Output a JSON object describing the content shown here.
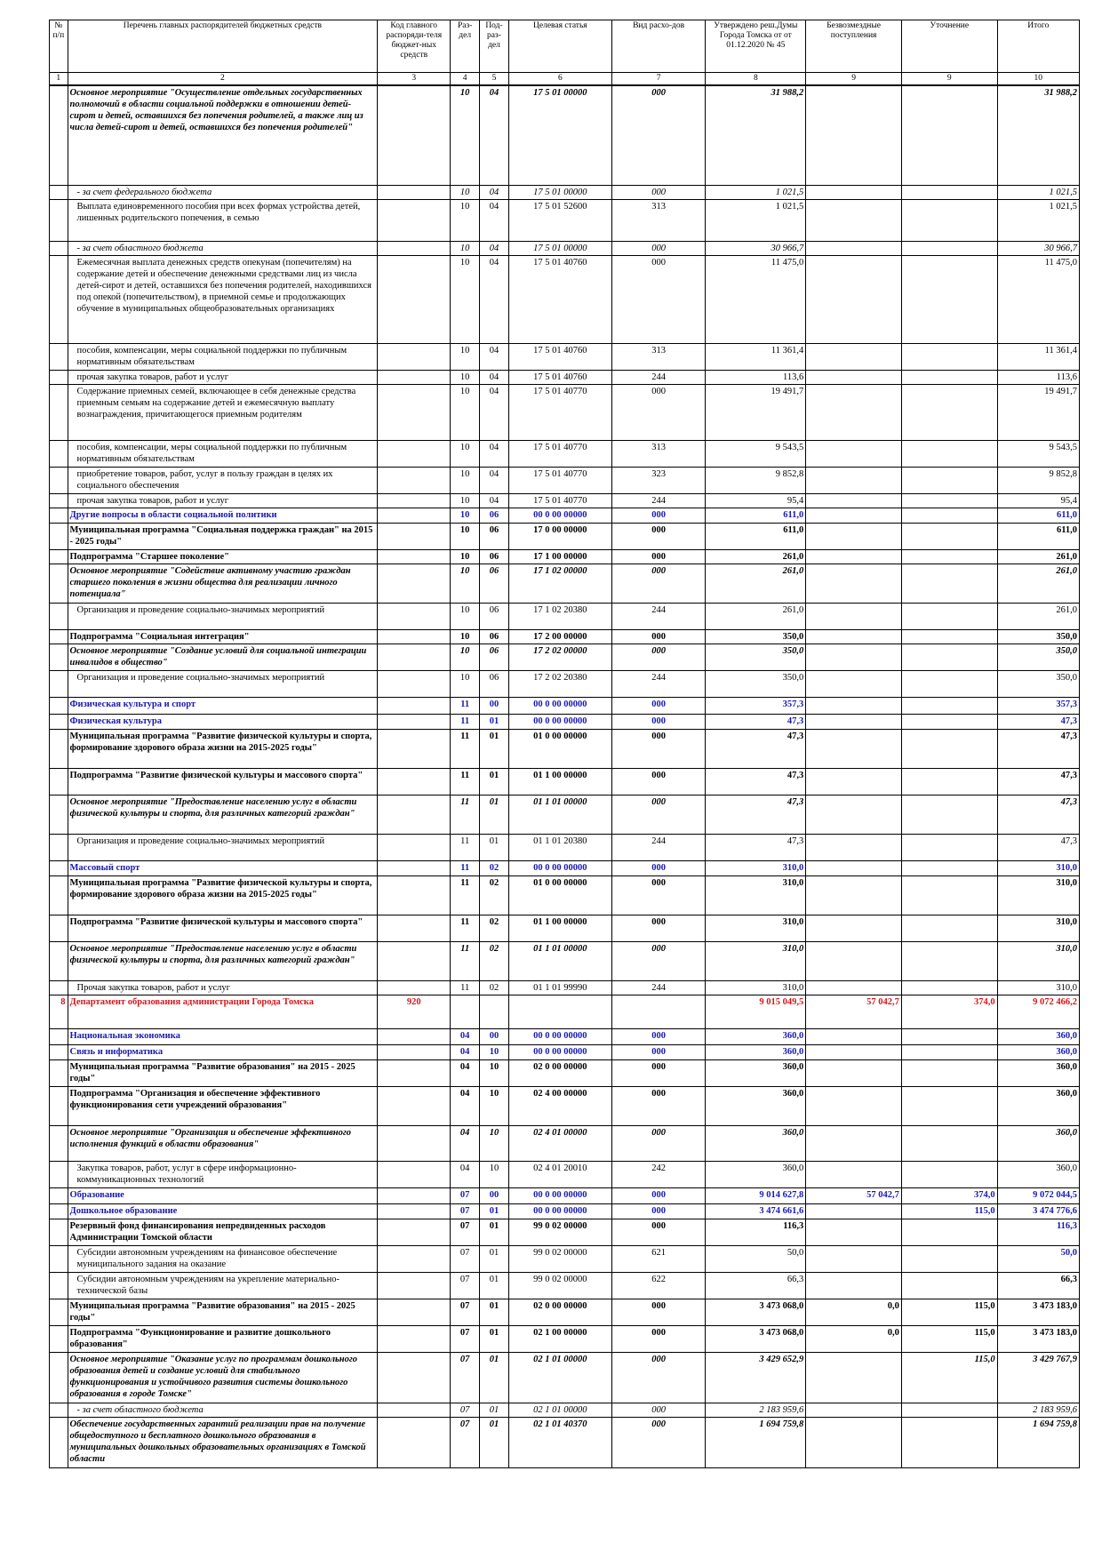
{
  "header": {
    "cols": [
      "№ п/п",
      "Перечень главных распорядителей бюджетных средств",
      "Код главного распоряди-теля бюджет-ных средств",
      "Раз-дел",
      "Под-раз-дел",
      "Целевая статья",
      "Вид расхо-дов",
      "Утверждено реш.Думы Города Томска от от 01.12.2020 № 45",
      "Безвозмездные поступления",
      "Уточнение",
      "Итого"
    ],
    "nums": [
      "1",
      "2",
      "3",
      "4",
      "5",
      "6",
      "7",
      "8",
      "9",
      "9",
      "10"
    ]
  },
  "rows": [
    {
      "style": "bi",
      "h": 112,
      "no": "",
      "name": "Основное мероприятие \"Осуществление отдельных государственных полномочий в области социальной поддержки в отношении детей-сирот и детей, оставшихся без попечения родителей, а также лиц из числа детей-сирот и детей, оставшихся без попечения родителей\"",
      "code": "",
      "razdel": "10",
      "podr": "04",
      "cs": "17 5 01 00000",
      "vr": "000",
      "approved": "31 988,2",
      "free": "",
      "clar": "",
      "total": "31 988,2"
    },
    {
      "style": "it",
      "h": 16,
      "ind": true,
      "no": "",
      "name": "- за счет федерального бюджета",
      "code": "",
      "razdel": "10",
      "podr": "04",
      "cs": "17 5 01 00000",
      "vr": "000",
      "approved": "1 021,5",
      "free": "",
      "clar": "",
      "total": "1 021,5"
    },
    {
      "style": "plain",
      "h": 47,
      "ind": true,
      "no": "",
      "name": "Выплата единовременного пособия при всех формах устройства детей, лишенных родительского попечения, в семью",
      "code": "",
      "razdel": "10",
      "podr": "04",
      "cs": "17 5 01 52600",
      "vr": "313",
      "approved": "1 021,5",
      "free": "",
      "clar": "",
      "total": "1 021,5"
    },
    {
      "style": "it",
      "h": 16,
      "ind": true,
      "no": "",
      "name": "- за счет областного бюджета",
      "code": "",
      "razdel": "10",
      "podr": "04",
      "cs": "17 5 01 00000",
      "vr": "000",
      "approved": "30 966,7",
      "free": "",
      "clar": "",
      "total": "30 966,7"
    },
    {
      "style": "plain",
      "h": 99,
      "ind": true,
      "no": "",
      "name": "Ежемесячная выплата денежных средств опекунам (попечителям) на содержание детей и обеспечение денежными средствами лиц из числа детей-сирот и детей, оставшихся без попечения родителей, находившихся под опекой (попечительством), в приемной семье и продолжающих обучение в муниципальных общеобразовательных организациях",
      "code": "",
      "razdel": "10",
      "podr": "04",
      "cs": "17 5 01 40760",
      "vr": "000",
      "approved": "11 475,0",
      "free": "",
      "clar": "",
      "total": "11 475,0"
    },
    {
      "style": "plain",
      "h": 30,
      "ind": true,
      "no": "",
      "name": "пособия, компенсации, меры социальной поддержки по публичным нормативным обязательствам",
      "code": "",
      "razdel": "10",
      "podr": "04",
      "cs": "17 5 01 40760",
      "vr": "313",
      "approved": "11 361,4",
      "free": "",
      "clar": "",
      "total": "11 361,4"
    },
    {
      "style": "plain",
      "h": 16,
      "ind": true,
      "no": "",
      "name": "прочая закупка товаров, работ и услуг",
      "code": "",
      "razdel": "10",
      "podr": "04",
      "cs": "17 5 01 40760",
      "vr": "244",
      "approved": "113,6",
      "free": "",
      "clar": "",
      "total": "113,6"
    },
    {
      "style": "plain",
      "h": 63,
      "ind": true,
      "no": "",
      "name": "Содержание приемных семей, включающее в себя денежные средства приемным семьям на содержание детей и ежемесячную выплату вознаграждения, причитающегося приемным родителям",
      "code": "",
      "razdel": "10",
      "podr": "04",
      "cs": "17 5 01 40770",
      "vr": "000",
      "approved": "19 491,7",
      "free": "",
      "clar": "",
      "total": "19 491,7"
    },
    {
      "style": "plain",
      "h": 30,
      "ind": true,
      "no": "",
      "name": "пособия, компенсации, меры социальной поддержки по публичным нормативным обязательствам",
      "code": "",
      "razdel": "10",
      "podr": "04",
      "cs": "17 5 01 40770",
      "vr": "313",
      "approved": "9 543,5",
      "free": "",
      "clar": "",
      "total": "9 543,5"
    },
    {
      "style": "plain",
      "h": 30,
      "ind": true,
      "no": "",
      "name": "приобретение товаров, работ, услуг в пользу граждан в целях их социального обеспечения",
      "code": "",
      "razdel": "10",
      "podr": "04",
      "cs": "17 5 01 40770",
      "vr": "323",
      "approved": "9 852,8",
      "free": "",
      "clar": "",
      "total": "9 852,8"
    },
    {
      "style": "plain",
      "h": 16,
      "ind": true,
      "no": "",
      "name": "прочая закупка товаров, работ и услуг",
      "code": "",
      "razdel": "10",
      "podr": "04",
      "cs": "17 5 01 40770",
      "vr": "244",
      "approved": "95,4",
      "free": "",
      "clar": "",
      "total": "95,4"
    },
    {
      "style": "blue",
      "h": 17,
      "no": "",
      "name": "Другие вопросы в области социальной политики",
      "code": "",
      "razdel": "10",
      "podr": "06",
      "cs": "00 0 00 00000",
      "vr": "000",
      "approved": "611,0",
      "free": "",
      "clar": "",
      "total": "611,0"
    },
    {
      "style": "bold",
      "h": 30,
      "no": "",
      "name": "Муниципальная программа \"Социальная поддержка граждан\" на 2015 - 2025 годы\"",
      "code": "",
      "razdel": "10",
      "podr": "06",
      "cs": "17 0 00 00000",
      "vr": "000",
      "approved": "611,0",
      "free": "",
      "clar": "",
      "total": "611,0"
    },
    {
      "style": "bold",
      "h": 16,
      "no": "",
      "name": "Подпрограмма \"Старшее поколение\"",
      "code": "",
      "razdel": "10",
      "podr": "06",
      "cs": "17 1 00 00000",
      "vr": "000",
      "approved": "261,0",
      "free": "",
      "clar": "",
      "total": "261,0"
    },
    {
      "style": "bi",
      "h": 44,
      "no": "",
      "name": "Основное мероприятие \"Содействие активному участию граждан старшего поколения в жизни общества для реализации личного потенциала\"",
      "code": "",
      "razdel": "10",
      "podr": "06",
      "cs": "17 1 02 00000",
      "vr": "000",
      "approved": "261,0",
      "free": "",
      "clar": "",
      "total": "261,0"
    },
    {
      "style": "plain",
      "h": 30,
      "ind": true,
      "no": "",
      "name": "Организация и проведение социально-значимых мероприятий",
      "code": "",
      "razdel": "10",
      "podr": "06",
      "cs": "17 1 02 20380",
      "vr": "244",
      "approved": "261,0",
      "free": "",
      "clar": "",
      "total": "261,0"
    },
    {
      "style": "bold",
      "h": 16,
      "no": "",
      "name": "Подпрограмма \"Социальная интеграция\"",
      "code": "",
      "razdel": "10",
      "podr": "06",
      "cs": "17 2 00 00000",
      "vr": "000",
      "approved": "350,0",
      "free": "",
      "clar": "",
      "total": "350,0"
    },
    {
      "style": "bi",
      "h": 30,
      "no": "",
      "name": "Основное мероприятие \"Создание условий для социальной интеграции инвалидов в общество\"",
      "code": "",
      "razdel": "10",
      "podr": "06",
      "cs": "17 2 02 00000",
      "vr": "000",
      "approved": "350,0",
      "free": "",
      "clar": "",
      "total": "350,0"
    },
    {
      "style": "plain",
      "h": 30,
      "ind": true,
      "no": "",
      "name": "Организация и проведение социально-значимых мероприятий",
      "code": "",
      "razdel": "10",
      "podr": "06",
      "cs": "17 2 02 20380",
      "vr": "244",
      "approved": "350,0",
      "free": "",
      "clar": "",
      "total": "350,0"
    },
    {
      "style": "blue big",
      "h": 19,
      "no": "",
      "name": "Физическая культура и спорт",
      "code": "",
      "razdel": "11",
      "podr": "00",
      "cs": "00 0 00 00000",
      "vr": "000",
      "approved": "357,3",
      "free": "",
      "clar": "",
      "total": "357,3"
    },
    {
      "style": "blue",
      "h": 17,
      "no": "",
      "name": "Физическая культура",
      "code": "",
      "razdel": "11",
      "podr": "01",
      "cs": "00 0 00 00000",
      "vr": "000",
      "approved": "47,3",
      "free": "",
      "clar": "",
      "total": "47,3"
    },
    {
      "style": "bold",
      "h": 44,
      "no": "",
      "name": "Муниципальная программа \"Развитие физической культуры и спорта, формирование здорового образа жизни на 2015-2025 годы\"",
      "code": "",
      "razdel": "11",
      "podr": "01",
      "cs": "01 0 00 00000",
      "vr": "000",
      "approved": "47,3",
      "free": "",
      "clar": "",
      "total": "47,3"
    },
    {
      "style": "bold",
      "h": 30,
      "no": "",
      "name": "Подпрограмма \"Развитие физической культуры и массового спорта\"",
      "code": "",
      "razdel": "11",
      "podr": "01",
      "cs": "01 1 00 00000",
      "vr": "000",
      "approved": "47,3",
      "free": "",
      "clar": "",
      "total": "47,3"
    },
    {
      "style": "bi",
      "h": 44,
      "no": "",
      "name": "Основное мероприятие \"Предоставление населению услуг в области физической культуры и спорта, для различных категорий граждан\"",
      "code": "",
      "razdel": "11",
      "podr": "01",
      "cs": "01 1 01 00000",
      "vr": "000",
      "approved": "47,3",
      "free": "",
      "clar": "",
      "total": "47,3"
    },
    {
      "style": "plain",
      "h": 30,
      "ind": true,
      "no": "",
      "name": "Организация и проведение социально-значимых мероприятий",
      "code": "",
      "razdel": "11",
      "podr": "01",
      "cs": "01 1 01 20380",
      "vr": "244",
      "approved": "47,3",
      "free": "",
      "clar": "",
      "total": "47,3"
    },
    {
      "style": "blue",
      "h": 17,
      "no": "",
      "name": "Массовый спорт",
      "code": "",
      "razdel": "11",
      "podr": "02",
      "cs": "00 0 00 00000",
      "vr": "000",
      "approved": "310,0",
      "free": "",
      "clar": "",
      "total": "310,0"
    },
    {
      "style": "bold",
      "h": 44,
      "no": "",
      "name": "Муниципальная программа \"Развитие физической культуры и спорта, формирование здорового образа жизни на 2015-2025 годы\"",
      "code": "",
      "razdel": "11",
      "podr": "02",
      "cs": "01 0 00 00000",
      "vr": "000",
      "approved": "310,0",
      "free": "",
      "clar": "",
      "total": "310,0"
    },
    {
      "style": "bold",
      "h": 30,
      "no": "",
      "name": "Подпрограмма \"Развитие физической культуры и массового спорта\"",
      "code": "",
      "razdel": "11",
      "podr": "02",
      "cs": "01 1 00 00000",
      "vr": "000",
      "approved": "310,0",
      "free": "",
      "clar": "",
      "total": "310,0"
    },
    {
      "style": "bi",
      "h": 44,
      "no": "",
      "name": "Основное мероприятие \"Предоставление населению услуг в области физической культуры и спорта, для различных категорий граждан\"",
      "code": "",
      "razdel": "11",
      "podr": "02",
      "cs": "01 1 01 00000",
      "vr": "000",
      "approved": "310,0",
      "free": "",
      "clar": "",
      "total": "310,0"
    },
    {
      "style": "plain",
      "h": 16,
      "ind": true,
      "no": "",
      "name": "Прочая закупка товаров, работ и услуг",
      "code": "",
      "razdel": "11",
      "podr": "02",
      "cs": "01 1 01 99990",
      "vr": "244",
      "approved": "310,0",
      "free": "",
      "clar": "",
      "total": "310,0"
    },
    {
      "style": "dept",
      "h": 38,
      "no": "8",
      "name": "Департамент образования администрации Города Томска",
      "code": "920",
      "razdel": "",
      "podr": "",
      "cs": "",
      "vr": "",
      "approved": "9 015 049,5",
      "free": "57 042,7",
      "clar": "374,0",
      "total": "9 072 466,2"
    },
    {
      "style": "blue big",
      "h": 18,
      "no": "",
      "name": "Национальная экономика",
      "code": "",
      "razdel": "04",
      "podr": "00",
      "cs": "00 0 00 00000",
      "vr": "000",
      "approved": "360,0",
      "free": "",
      "clar": "",
      "total": "360,0"
    },
    {
      "style": "blue",
      "h": 17,
      "no": "",
      "name": "Связь и информатика",
      "code": "",
      "razdel": "04",
      "podr": "10",
      "cs": "00 0 00 00000",
      "vr": "000",
      "approved": "360,0",
      "free": "",
      "clar": "",
      "total": "360,0"
    },
    {
      "style": "bold",
      "h": 30,
      "no": "",
      "name": "Муниципальная программа \"Развитие образования\" на 2015 - 2025 годы\"",
      "code": "",
      "razdel": "04",
      "podr": "10",
      "cs": "02 0 00 00000",
      "vr": "000",
      "approved": "360,0",
      "free": "",
      "clar": "",
      "total": "360,0"
    },
    {
      "style": "bold",
      "h": 44,
      "no": "",
      "name": "Подпрограмма \"Организация и обеспечение эффективного функционирования сети учреждений образования\"",
      "code": "",
      "razdel": "04",
      "podr": "10",
      "cs": "02 4 00 00000",
      "vr": "000",
      "approved": "360,0",
      "free": "",
      "clar": "",
      "total": "360,0"
    },
    {
      "style": "bi",
      "h": 40,
      "no": "",
      "name": "Основное мероприятие \"Организация и обеспечение эффективного исполнения функций в области образования\"",
      "code": "",
      "razdel": "04",
      "podr": "10",
      "cs": "02 4 01 00000",
      "vr": "000",
      "approved": "360,0",
      "free": "",
      "clar": "",
      "total": "360,0"
    },
    {
      "style": "plain",
      "h": 30,
      "ind": true,
      "no": "",
      "name": "Закупка товаров, работ, услуг в сфере информационно-коммуникационных технологий",
      "code": "",
      "razdel": "04",
      "podr": "10",
      "cs": "02 4 01 20010",
      "vr": "242",
      "approved": "360,0",
      "free": "",
      "clar": "",
      "total": "360,0"
    },
    {
      "style": "blue big",
      "h": 18,
      "no": "",
      "name": "Образование",
      "code": "",
      "razdel": "07",
      "podr": "00",
      "cs": "00 0 00 00000",
      "vr": "000",
      "approved": "9 014 627,8",
      "free": "57 042,7",
      "clar": "374,0",
      "total": "9 072 044,5"
    },
    {
      "style": "blue",
      "h": 17,
      "no": "",
      "name": "Дошкольное образование",
      "code": "",
      "razdel": "07",
      "podr": "01",
      "cs": "00 0 00 00000",
      "vr": "000",
      "approved": "3 474 661,6",
      "free": "",
      "clar": "115,0",
      "total": "3 474 776,6"
    },
    {
      "style": "bold",
      "h": 30,
      "no": "",
      "name": "Резервный фонд финансирования непредвиденных расходов Администрации Томской области",
      "code": "",
      "razdel": "07",
      "podr": "01",
      "cs": "99 0 02 00000",
      "vr": "000",
      "approved": "116,3",
      "free": "",
      "clar": "",
      "total": "116,3",
      "bluetotal": true
    },
    {
      "style": "plain",
      "h": 30,
      "ind": true,
      "no": "",
      "name": "Субсидии автономным учреждениям на финансовое обеспечение муниципального задания на оказание",
      "code": "",
      "razdel": "07",
      "podr": "01",
      "cs": "99 0 02 00000",
      "vr": "621",
      "approved": "50,0",
      "free": "",
      "clar": "",
      "total": "50,0",
      "bluetotal": true
    },
    {
      "style": "plain",
      "h": 30,
      "ind": true,
      "no": "",
      "name": "Субсидии автономным учреждениям на укрепление материально-технической базы",
      "code": "",
      "razdel": "07",
      "podr": "01",
      "cs": "99 0 02 00000",
      "vr": "622",
      "approved": "66,3",
      "free": "",
      "clar": "",
      "total": "66,3",
      "boldtotal": true
    },
    {
      "style": "bold",
      "h": 30,
      "no": "",
      "name": "Муниципальная программа \"Развитие образования\" на 2015 - 2025 годы\"",
      "code": "",
      "razdel": "07",
      "podr": "01",
      "cs": "02 0 00 00000",
      "vr": "000",
      "approved": "3 473 068,0",
      "free": "0,0",
      "clar": "115,0",
      "total": "3 473 183,0"
    },
    {
      "style": "bold",
      "h": 30,
      "no": "",
      "name": "Подпрограмма \"Функционирование и развитие дошкольного образования\"",
      "code": "",
      "razdel": "07",
      "podr": "01",
      "cs": "02 1 00 00000",
      "vr": "000",
      "approved": "3 473 068,0",
      "free": "0,0",
      "clar": "115,0",
      "total": "3 473 183,0"
    },
    {
      "style": "bi",
      "h": 57,
      "no": "",
      "name": "Основное мероприятие \"Оказание услуг по программам дошкольного образования детей и создание условий для стабильного функционирования и устойчивого развития системы дошкольного образования в городе Томске\"",
      "code": "",
      "razdel": "07",
      "podr": "01",
      "cs": "02 1 01 00000",
      "vr": "000",
      "approved": "3 429 652,9",
      "free": "",
      "clar": "115,0",
      "total": "3 429 767,9"
    },
    {
      "style": "it",
      "h": 16,
      "ind": true,
      "no": "",
      "name": "- за счет областного бюджета",
      "code": "",
      "razdel": "07",
      "podr": "01",
      "cs": "02 1 01 00000",
      "vr": "000",
      "approved": "2 183 959,6",
      "free": "",
      "clar": "",
      "total": "2 183 959,6"
    },
    {
      "style": "bi",
      "h": 57,
      "no": "",
      "name": "Обеспечение государственных гарантий реализации прав на получение общедоступного и бесплатного дошкольного образования в муниципальных дошкольных образовательных организациях в Томской области",
      "code": "",
      "razdel": "07",
      "podr": "01",
      "cs": "02 1 01 40370",
      "vr": "000",
      "approved": "1 694 759,8",
      "free": "",
      "clar": "",
      "total": "1 694 759,8"
    }
  ]
}
